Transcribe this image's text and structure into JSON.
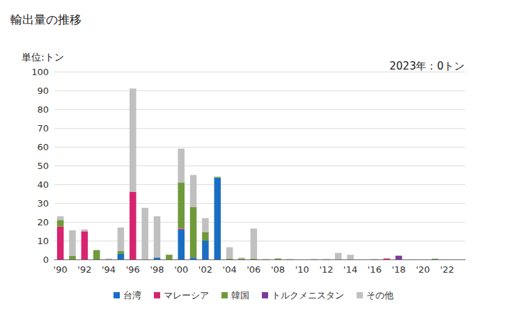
{
  "chart_data": {
    "type": "bar",
    "title": "輸出量の推移",
    "y_label": "単位:トン",
    "annotation": "2023年：0トン",
    "stacked": true,
    "grid": true,
    "legend": "bottom",
    "categories": [
      "'90",
      null,
      "'92",
      null,
      "'94",
      null,
      "'96",
      null,
      "'98",
      null,
      "'00",
      null,
      "'02",
      null,
      "'04",
      null,
      "'06",
      null,
      "'08",
      null,
      "'10",
      null,
      "'12",
      null,
      "'14",
      null,
      "'16",
      null,
      "'18",
      null,
      "'20",
      null,
      "'22",
      null
    ],
    "series": [
      {
        "name": "台湾",
        "color": "#1a6fc2",
        "values": [
          0,
          0,
          0,
          0,
          0,
          3,
          0,
          0,
          1,
          0,
          16,
          1,
          10,
          43.5,
          0,
          0,
          0,
          0,
          0,
          0,
          0,
          0,
          0,
          0,
          0,
          0,
          0,
          0,
          0,
          0,
          0,
          0,
          0,
          0
        ]
      },
      {
        "name": "マレーシア",
        "color": "#d6246e",
        "values": [
          17.5,
          0,
          15,
          0,
          0,
          0,
          36,
          0,
          0,
          0,
          0.5,
          0,
          0,
          0,
          0,
          0,
          0,
          0,
          0,
          0,
          0,
          0,
          0,
          0,
          0,
          0,
          0,
          0.5,
          0,
          0,
          0,
          0,
          0,
          0
        ]
      },
      {
        "name": "韓国",
        "color": "#6f9a3a",
        "values": [
          3.5,
          2,
          0,
          5,
          0,
          1.5,
          0,
          0,
          0,
          2.5,
          24.5,
          27,
          4.5,
          0.5,
          0.5,
          0.5,
          0.5,
          0,
          0.5,
          0,
          0,
          0,
          0,
          0,
          0,
          0,
          0,
          0,
          0,
          0,
          0,
          0.4,
          0,
          0
        ]
      },
      {
        "name": "トルクメニスタン",
        "color": "#7a3b9c",
        "values": [
          0,
          0,
          0,
          0,
          0,
          0,
          0,
          0,
          0,
          0,
          0,
          0,
          0,
          0,
          0,
          0,
          0,
          0,
          0,
          0,
          0,
          0,
          0,
          0,
          0,
          0,
          0,
          0,
          2,
          0,
          0,
          0,
          0,
          0
        ]
      },
      {
        "name": "その他",
        "color": "#c0c0c0",
        "values": [
          2,
          13.5,
          1,
          0,
          0.5,
          12.5,
          55,
          27.5,
          22,
          0,
          18,
          17,
          7.5,
          0,
          6,
          0.5,
          16,
          0.3,
          0,
          0.3,
          0,
          0.3,
          0.3,
          3.5,
          2.5,
          0,
          0.3,
          0,
          0,
          0,
          0,
          0,
          0,
          0
        ]
      }
    ],
    "ylim": [
      0,
      100
    ],
    "yticks": [
      0,
      10,
      20,
      30,
      40,
      50,
      60,
      70,
      80,
      90,
      100
    ]
  }
}
